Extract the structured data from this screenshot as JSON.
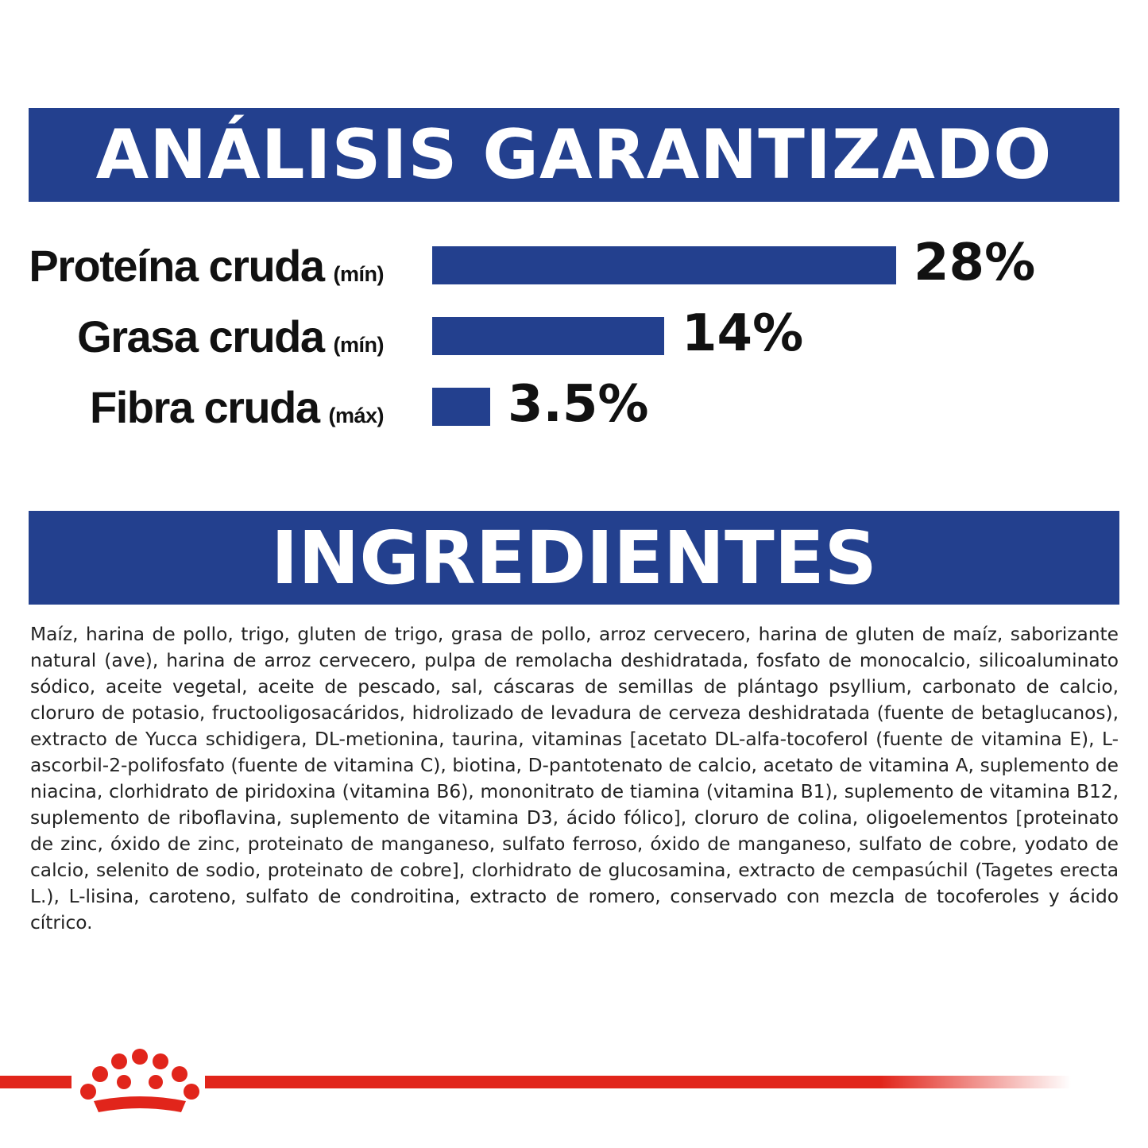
{
  "colors": {
    "banner": "#23408e",
    "bar": "#23408e",
    "brand_red": "#e1251b",
    "text": "#111111"
  },
  "analysis": {
    "title": "ANÁLISIS GARANTIZADO"
  },
  "chart_data": {
    "type": "bar",
    "orientation": "horizontal",
    "title": "ANÁLISIS GARANTIZADO",
    "categories": [
      "Proteína cruda",
      "Grasa cruda",
      "Fibra cruda"
    ],
    "qualifiers": [
      "(mín)",
      "(mín)",
      "(máx)"
    ],
    "values": [
      28,
      14,
      3.5
    ],
    "value_labels": [
      "28%",
      "14%",
      "3.5%"
    ],
    "unit": "%",
    "xlim": [
      0,
      28
    ],
    "grid": false,
    "legend": "none"
  },
  "ingredients": {
    "title": "INGREDIENTES",
    "text": "Maíz, harina de pollo, trigo, gluten de trigo, grasa de pollo, arroz cervecero, harina de gluten de maíz, saborizante natural (ave), harina de arroz cervecero, pulpa de remolacha deshidratada, fosfato de monocalcio, silicoaluminato sódico, aceite vegetal, aceite de pescado, sal, cáscaras de semillas de plántago psyllium, carbonato de calcio, cloruro de potasio, fructooligosacáridos, hidrolizado de levadura de cerveza deshidratada (fuente de betaglucanos), extracto de Yucca schidigera, DL-metionina, taurina, vitaminas [acetato DL-alfa-tocoferol (fuente de vitamina E), L-ascorbil-2-polifosfato (fuente de vitamina C), biotina, D-pantotenato de calcio, acetato de vitamina A, suplemento de niacina, clorhidrato de piridoxina (vitamina B6), mononitrato de tiamina (vitamina B1), suplemento de vitamina B12, suplemento de riboflavina, suplemento de vitamina D3, ácido fólico], cloruro de colina, oligoelementos [proteinato de zinc, óxido de zinc, proteinato de manganeso, sulfato ferroso, óxido de manganeso, sulfato de cobre, yodato de calcio, selenito de sodio, proteinato de cobre], clorhidrato de glucosamina, extracto de cempasúchil (Tagetes erecta L.), L-lisina, caroteno, sulfato de condroitina, extracto de romero, conservado con mezcla de tocoferoles y ácido cítrico."
  },
  "footer": {
    "logo_icon": "crown-icon"
  }
}
